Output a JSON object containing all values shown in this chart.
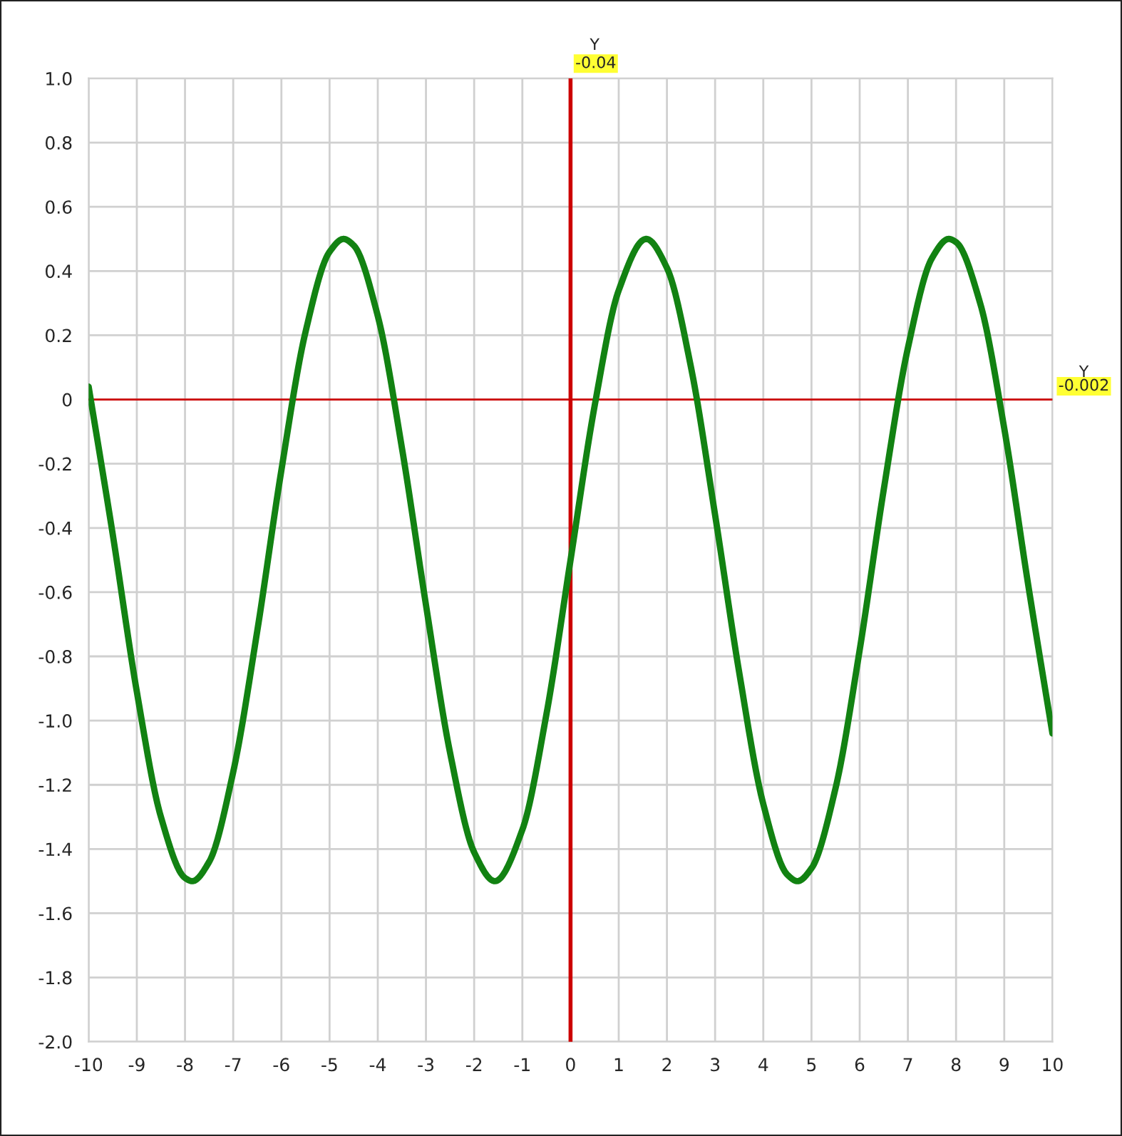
{
  "chart_data": {
    "type": "line",
    "x": [
      -10,
      -9.5,
      -9,
      -8.5,
      -8,
      -7.85,
      -7.5,
      -7,
      -6.5,
      -6,
      -5.5,
      -5,
      -4.71,
      -4.5,
      -4,
      -3.5,
      -3,
      -2.5,
      -2,
      -1.57,
      -1,
      -0.5,
      0,
      0.5,
      1,
      1.57,
      2,
      2.5,
      3,
      3.5,
      4,
      4.5,
      4.71,
      5,
      5.5,
      6,
      6.5,
      7,
      7.5,
      7.85,
      8,
      8.5,
      9,
      9.5,
      10
    ],
    "series": [
      {
        "color": "#128212",
        "values": [
          0.04,
          -0.42,
          -0.91,
          -1.3,
          -1.49,
          -1.5,
          -1.44,
          -1.16,
          -0.72,
          -0.22,
          0.21,
          0.46,
          0.5,
          0.48,
          0.26,
          -0.15,
          -0.64,
          -1.1,
          -1.41,
          -1.5,
          -1.34,
          -0.98,
          -0.5,
          -0.02,
          0.34,
          0.5,
          0.41,
          0.1,
          -0.36,
          -0.85,
          -1.26,
          -1.48,
          -1.5,
          -1.46,
          -1.21,
          -0.78,
          -0.28,
          0.16,
          0.44,
          0.5,
          0.49,
          0.3,
          -0.09,
          -0.58,
          -1.04
        ]
      }
    ],
    "xlim": [
      -10,
      10
    ],
    "xticks": [
      -10,
      -9,
      -8,
      -7,
      -6,
      -5,
      -4,
      -3,
      -2,
      -1,
      0,
      1,
      2,
      3,
      4,
      5,
      6,
      7,
      8,
      9,
      10
    ],
    "ylim": [
      -2.0,
      1.0
    ],
    "yticks": [
      {
        "value": -2,
        "label": "-2.0"
      },
      -1.8,
      -1.6,
      -1.4,
      -1.2,
      {
        "value": -1,
        "label": "-1.0"
      },
      -0.8,
      -0.6,
      -0.4,
      -0.2,
      0,
      0.2,
      0.4,
      0.6,
      0.8,
      {
        "value": 1,
        "label": "1.0"
      }
    ],
    "grid": true,
    "marker": "none",
    "line_style": "solid",
    "legend": false,
    "ref_lines": [
      {
        "axis": "x",
        "value": 0,
        "color": "#cc0000"
      },
      {
        "axis": "y",
        "value": 0,
        "color": "#cc0000"
      }
    ],
    "annotations": [
      "Y",
      "-0.04",
      "Y",
      "-0.002"
    ]
  }
}
